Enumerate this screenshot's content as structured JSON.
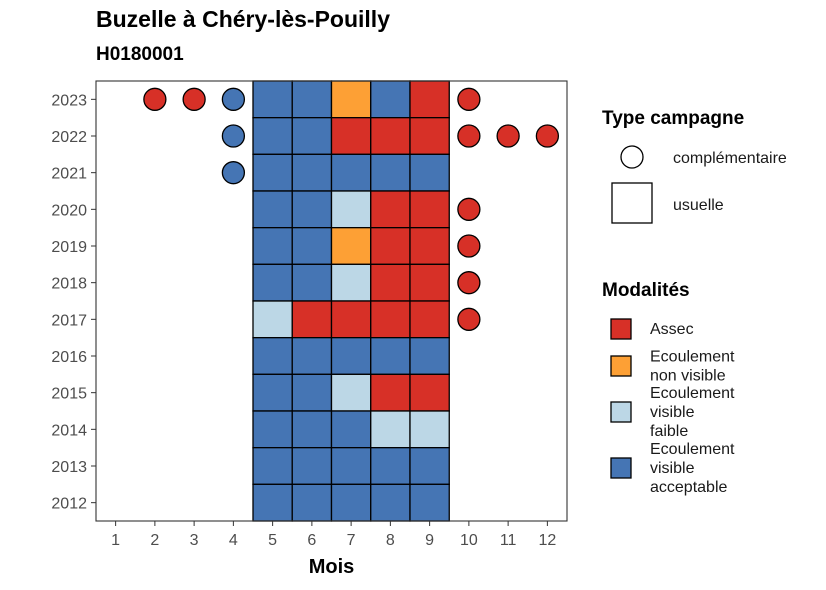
{
  "title": "Buzelle à Chéry-lès-Pouilly",
  "subtitle": "H0180001",
  "colors": {
    "Assec": "#D73027",
    "Ecoulement non visible": "#FDA035",
    "Ecoulement visible faible": "#BCD7E6",
    "Ecoulement visible acceptable": "#4575B4"
  },
  "chart_data": {
    "type": "heatmap",
    "xlabel": "Mois",
    "ylabel": "",
    "x_ticks": [
      "1",
      "2",
      "3",
      "4",
      "5",
      "6",
      "7",
      "8",
      "9",
      "10",
      "11",
      "12"
    ],
    "y_ticks": [
      "2012",
      "2013",
      "2014",
      "2015",
      "2016",
      "2017",
      "2018",
      "2019",
      "2020",
      "2021",
      "2022",
      "2023"
    ],
    "xlim": [
      0.5,
      12.5
    ],
    "ylim": [
      2011.5,
      2023.5
    ],
    "grid": false,
    "legend_position": "right",
    "legends": [
      {
        "title": "Type campagne",
        "entries": [
          {
            "label": "complémentaire",
            "shape": "circle"
          },
          {
            "label": "usuelle",
            "shape": "square"
          }
        ]
      },
      {
        "title": "Modalités",
        "entries": [
          {
            "label": "Assec",
            "lines": [
              "Assec"
            ]
          },
          {
            "label": "Ecoulement non visible",
            "lines": [
              "Ecoulement",
              "non visible"
            ]
          },
          {
            "label": "Ecoulement visible faible",
            "lines": [
              "Ecoulement",
              "visible",
              "faible"
            ]
          },
          {
            "label": "Ecoulement visible acceptable",
            "lines": [
              "Ecoulement",
              "visible",
              "acceptable"
            ]
          }
        ]
      }
    ],
    "usuelle": [
      {
        "year": 2023,
        "values": {
          "5": "Ecoulement visible acceptable",
          "6": "Ecoulement visible acceptable",
          "7": "Ecoulement non visible",
          "8": "Ecoulement visible acceptable",
          "9": "Assec"
        }
      },
      {
        "year": 2022,
        "values": {
          "5": "Ecoulement visible acceptable",
          "6": "Ecoulement visible acceptable",
          "7": "Assec",
          "8": "Assec",
          "9": "Assec"
        }
      },
      {
        "year": 2021,
        "values": {
          "5": "Ecoulement visible acceptable",
          "6": "Ecoulement visible acceptable",
          "7": "Ecoulement visible acceptable",
          "8": "Ecoulement visible acceptable",
          "9": "Ecoulement visible acceptable"
        }
      },
      {
        "year": 2020,
        "values": {
          "5": "Ecoulement visible acceptable",
          "6": "Ecoulement visible acceptable",
          "7": "Ecoulement visible faible",
          "8": "Assec",
          "9": "Assec"
        }
      },
      {
        "year": 2019,
        "values": {
          "5": "Ecoulement visible acceptable",
          "6": "Ecoulement visible acceptable",
          "7": "Ecoulement non visible",
          "8": "Assec",
          "9": "Assec"
        }
      },
      {
        "year": 2018,
        "values": {
          "5": "Ecoulement visible acceptable",
          "6": "Ecoulement visible acceptable",
          "7": "Ecoulement visible faible",
          "8": "Assec",
          "9": "Assec"
        }
      },
      {
        "year": 2017,
        "values": {
          "5": "Ecoulement visible faible",
          "6": "Assec",
          "7": "Assec",
          "8": "Assec",
          "9": "Assec"
        }
      },
      {
        "year": 2016,
        "values": {
          "5": "Ecoulement visible acceptable",
          "6": "Ecoulement visible acceptable",
          "7": "Ecoulement visible acceptable",
          "8": "Ecoulement visible acceptable",
          "9": "Ecoulement visible acceptable"
        }
      },
      {
        "year": 2015,
        "values": {
          "5": "Ecoulement visible acceptable",
          "6": "Ecoulement visible acceptable",
          "7": "Ecoulement visible faible",
          "8": "Assec",
          "9": "Assec"
        }
      },
      {
        "year": 2014,
        "values": {
          "5": "Ecoulement visible acceptable",
          "6": "Ecoulement visible acceptable",
          "7": "Ecoulement visible acceptable",
          "8": "Ecoulement visible faible",
          "9": "Ecoulement visible faible"
        }
      },
      {
        "year": 2013,
        "values": {
          "5": "Ecoulement visible acceptable",
          "6": "Ecoulement visible acceptable",
          "7": "Ecoulement visible acceptable",
          "8": "Ecoulement visible acceptable",
          "9": "Ecoulement visible acceptable"
        }
      },
      {
        "year": 2012,
        "values": {
          "5": "Ecoulement visible acceptable",
          "6": "Ecoulement visible acceptable",
          "7": "Ecoulement visible acceptable",
          "8": "Ecoulement visible acceptable",
          "9": "Ecoulement visible acceptable"
        }
      }
    ],
    "complementaire": [
      {
        "year": 2023,
        "month": 2,
        "value": "Assec"
      },
      {
        "year": 2023,
        "month": 3,
        "value": "Assec"
      },
      {
        "year": 2023,
        "month": 4,
        "value": "Ecoulement visible acceptable"
      },
      {
        "year": 2023,
        "month": 10,
        "value": "Assec"
      },
      {
        "year": 2022,
        "month": 4,
        "value": "Ecoulement visible acceptable"
      },
      {
        "year": 2022,
        "month": 10,
        "value": "Assec"
      },
      {
        "year": 2022,
        "month": 11,
        "value": "Assec"
      },
      {
        "year": 2022,
        "month": 12,
        "value": "Assec"
      },
      {
        "year": 2021,
        "month": 4,
        "value": "Ecoulement visible acceptable"
      },
      {
        "year": 2020,
        "month": 10,
        "value": "Assec"
      },
      {
        "year": 2019,
        "month": 10,
        "value": "Assec"
      },
      {
        "year": 2018,
        "month": 10,
        "value": "Assec"
      },
      {
        "year": 2017,
        "month": 10,
        "value": "Assec"
      }
    ]
  }
}
